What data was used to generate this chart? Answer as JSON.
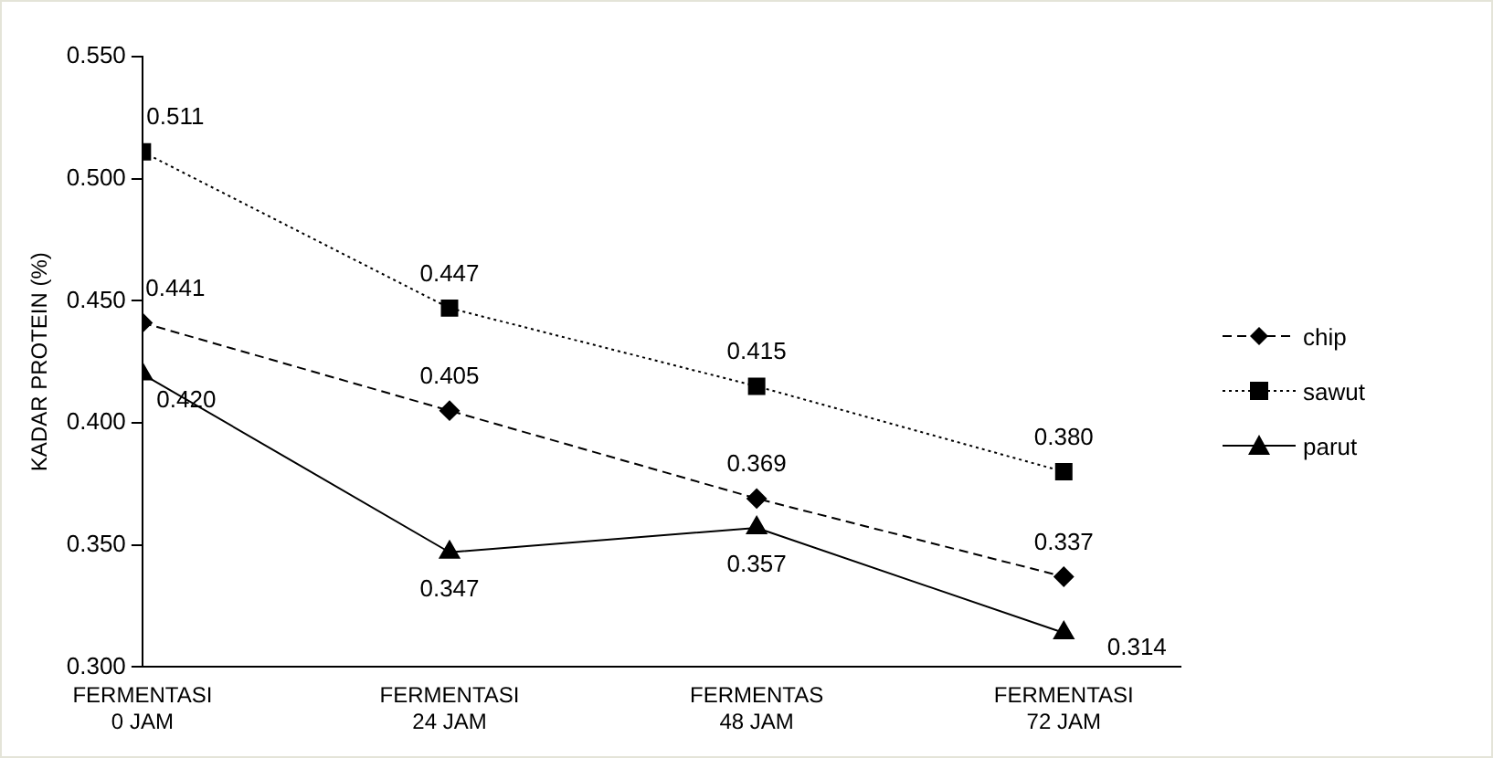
{
  "chart_data": {
    "type": "line",
    "ylabel": "KADAR PROTEIN (%)",
    "categories": [
      "FERMENTASI\n0 JAM",
      "FERMENTASI\n24 JAM",
      "FERMENTAS\n48 JAM",
      "FERMENTASI\n72 JAM"
    ],
    "series": [
      {
        "name": "chip",
        "color": "#000000",
        "marker": "diamond",
        "line_style": "dashed",
        "values": [
          0.441,
          0.405,
          0.369,
          0.337
        ],
        "value_labels": [
          "0.441",
          "0.405",
          "0.369",
          "0.337"
        ]
      },
      {
        "name": "sawut",
        "color": "#000000",
        "marker": "square",
        "line_style": "dotted",
        "values": [
          0.511,
          0.447,
          0.415,
          0.38
        ],
        "value_labels": [
          "0.511",
          "0.447",
          "0.415",
          "0.380"
        ]
      },
      {
        "name": "parut",
        "color": "#000000",
        "marker": "triangle",
        "line_style": "solid",
        "values": [
          0.42,
          0.347,
          0.357,
          0.314
        ],
        "value_labels": [
          "0.420",
          "0.347",
          "0.357",
          "0.314"
        ]
      }
    ],
    "ylim": [
      0.3,
      0.55
    ],
    "yticks": [
      {
        "value": 0.3,
        "label": "0.300"
      },
      {
        "value": 0.35,
        "label": "0.350"
      },
      {
        "value": 0.4,
        "label": "0.400"
      },
      {
        "value": 0.45,
        "label": "0.450"
      },
      {
        "value": 0.5,
        "label": "0.500"
      },
      {
        "value": 0.55,
        "label": "0.550"
      }
    ],
    "grid": false,
    "legend": "right"
  }
}
